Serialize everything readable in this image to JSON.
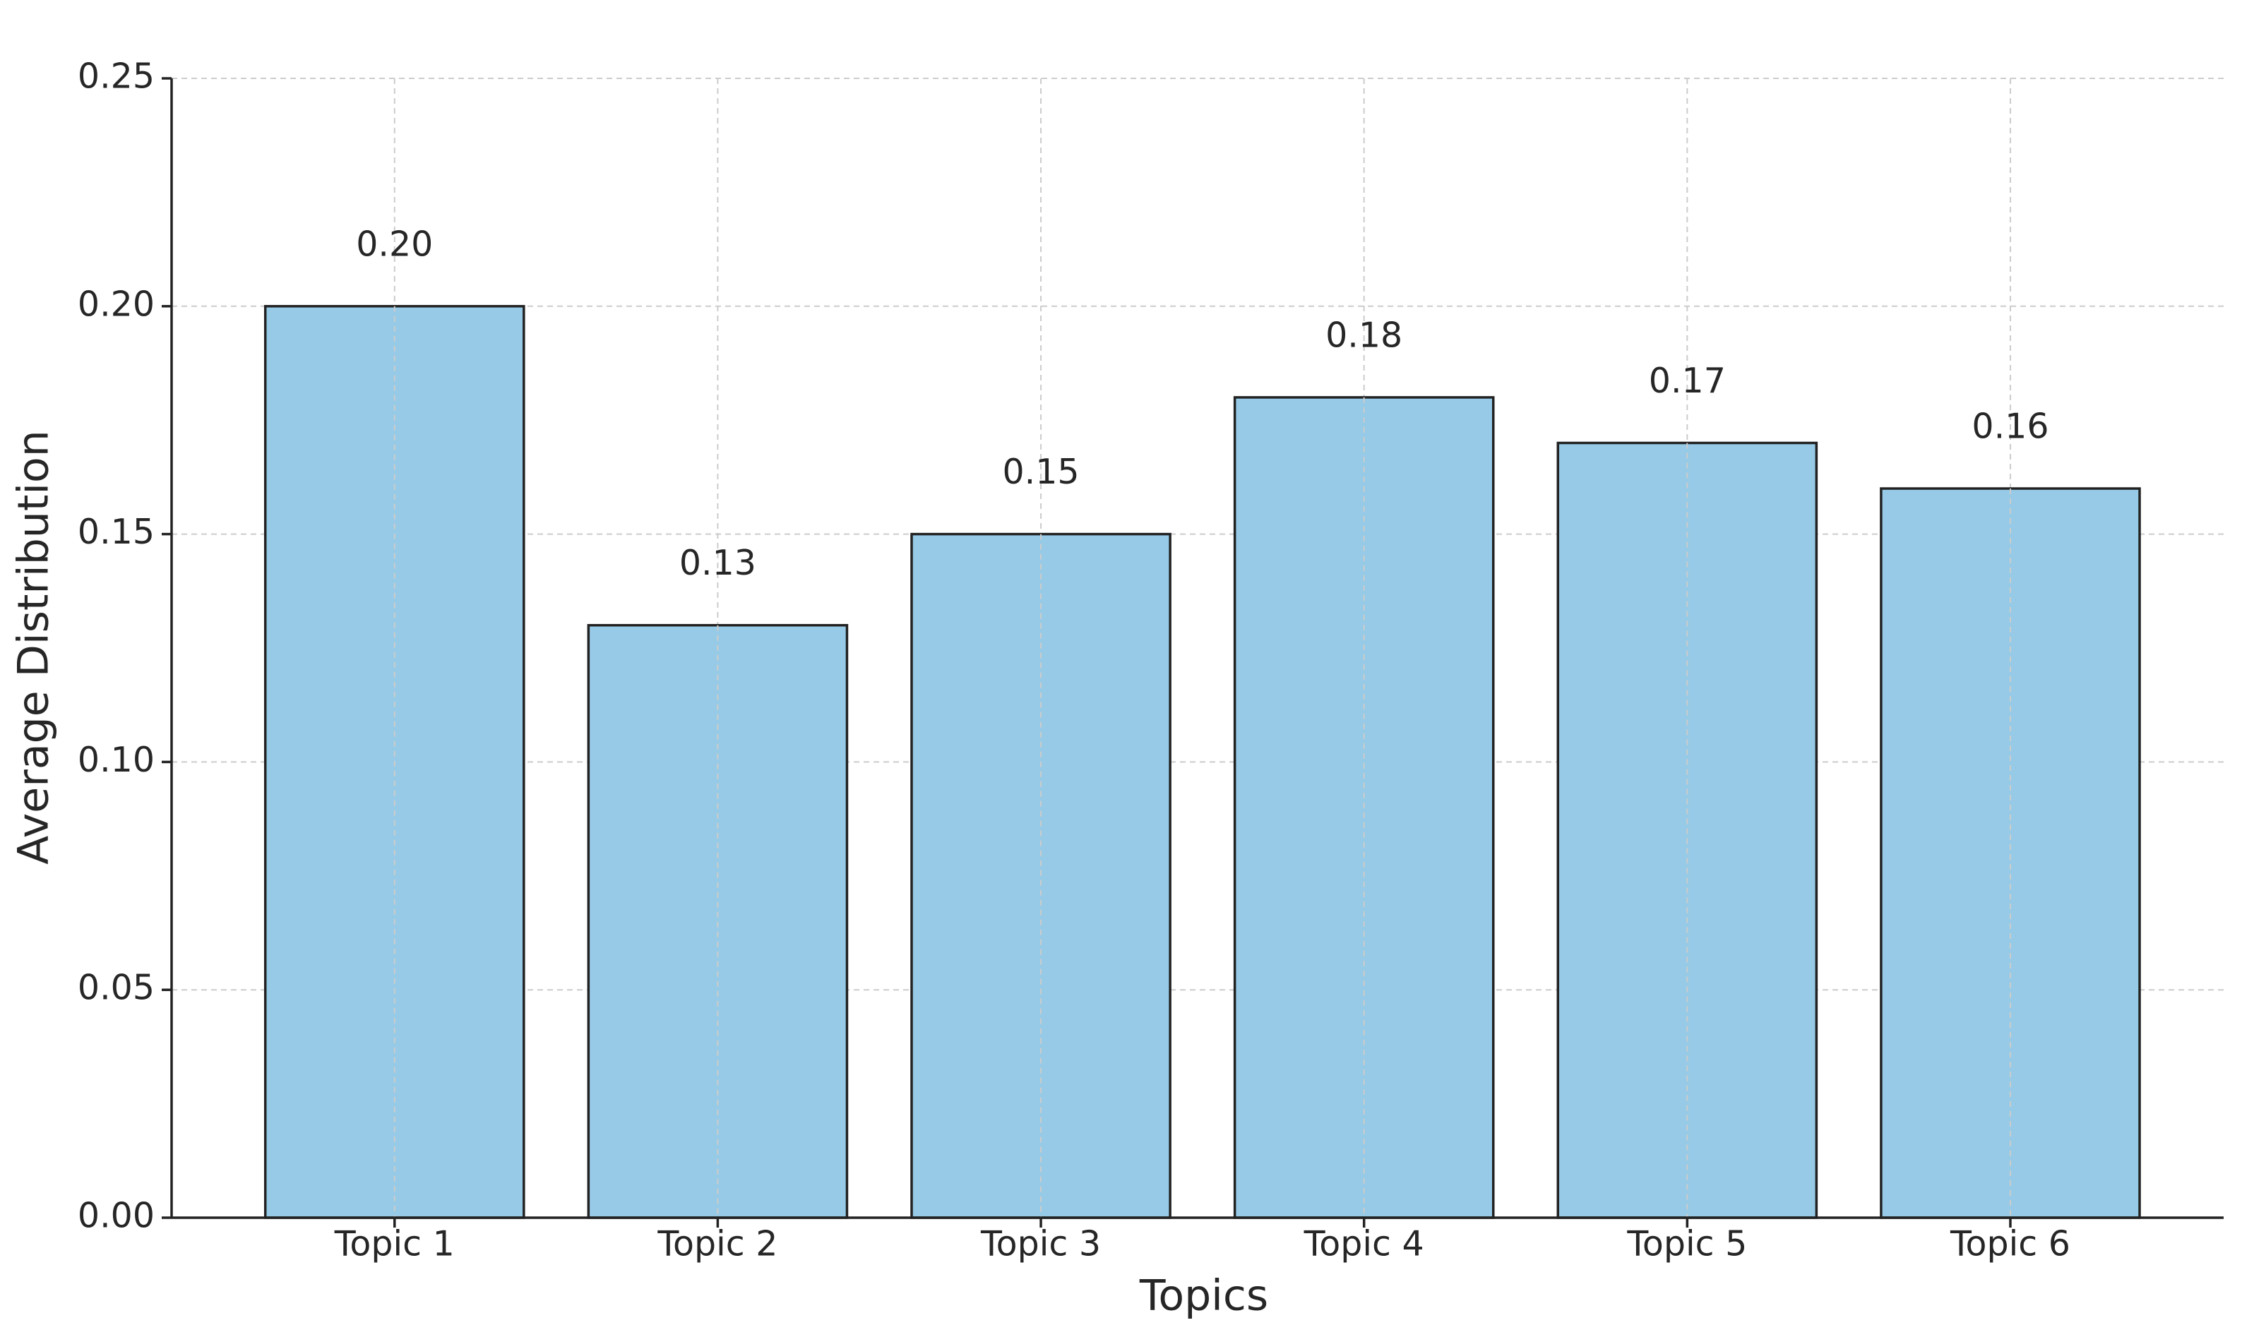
{
  "chart_data": {
    "type": "bar",
    "x_label": "Topics",
    "y_label": "Average Distribution",
    "categories": [
      "Topic 1",
      "Topic 2",
      "Topic 3",
      "Topic 4",
      "Topic 5",
      "Topic 6"
    ],
    "values": [
      0.2,
      0.13,
      0.15,
      0.18,
      0.17,
      0.16
    ],
    "value_labels": [
      "0.20",
      "0.13",
      "0.15",
      "0.18",
      "0.17",
      "0.16"
    ],
    "color": "#96cae6",
    "edgecolor": "#222222",
    "ylim": [
      0,
      0.25
    ],
    "yticks": [
      {
        "value": 0,
        "label": "0.00"
      },
      {
        "value": 0.05,
        "label": "0.05"
      },
      {
        "value": 0.1,
        "label": "0.10"
      },
      {
        "value": 0.15,
        "label": "0.15"
      },
      {
        "value": 0.2,
        "label": "0.20"
      },
      {
        "value": 0.25,
        "label": "0.25"
      }
    ],
    "grid": true
  }
}
